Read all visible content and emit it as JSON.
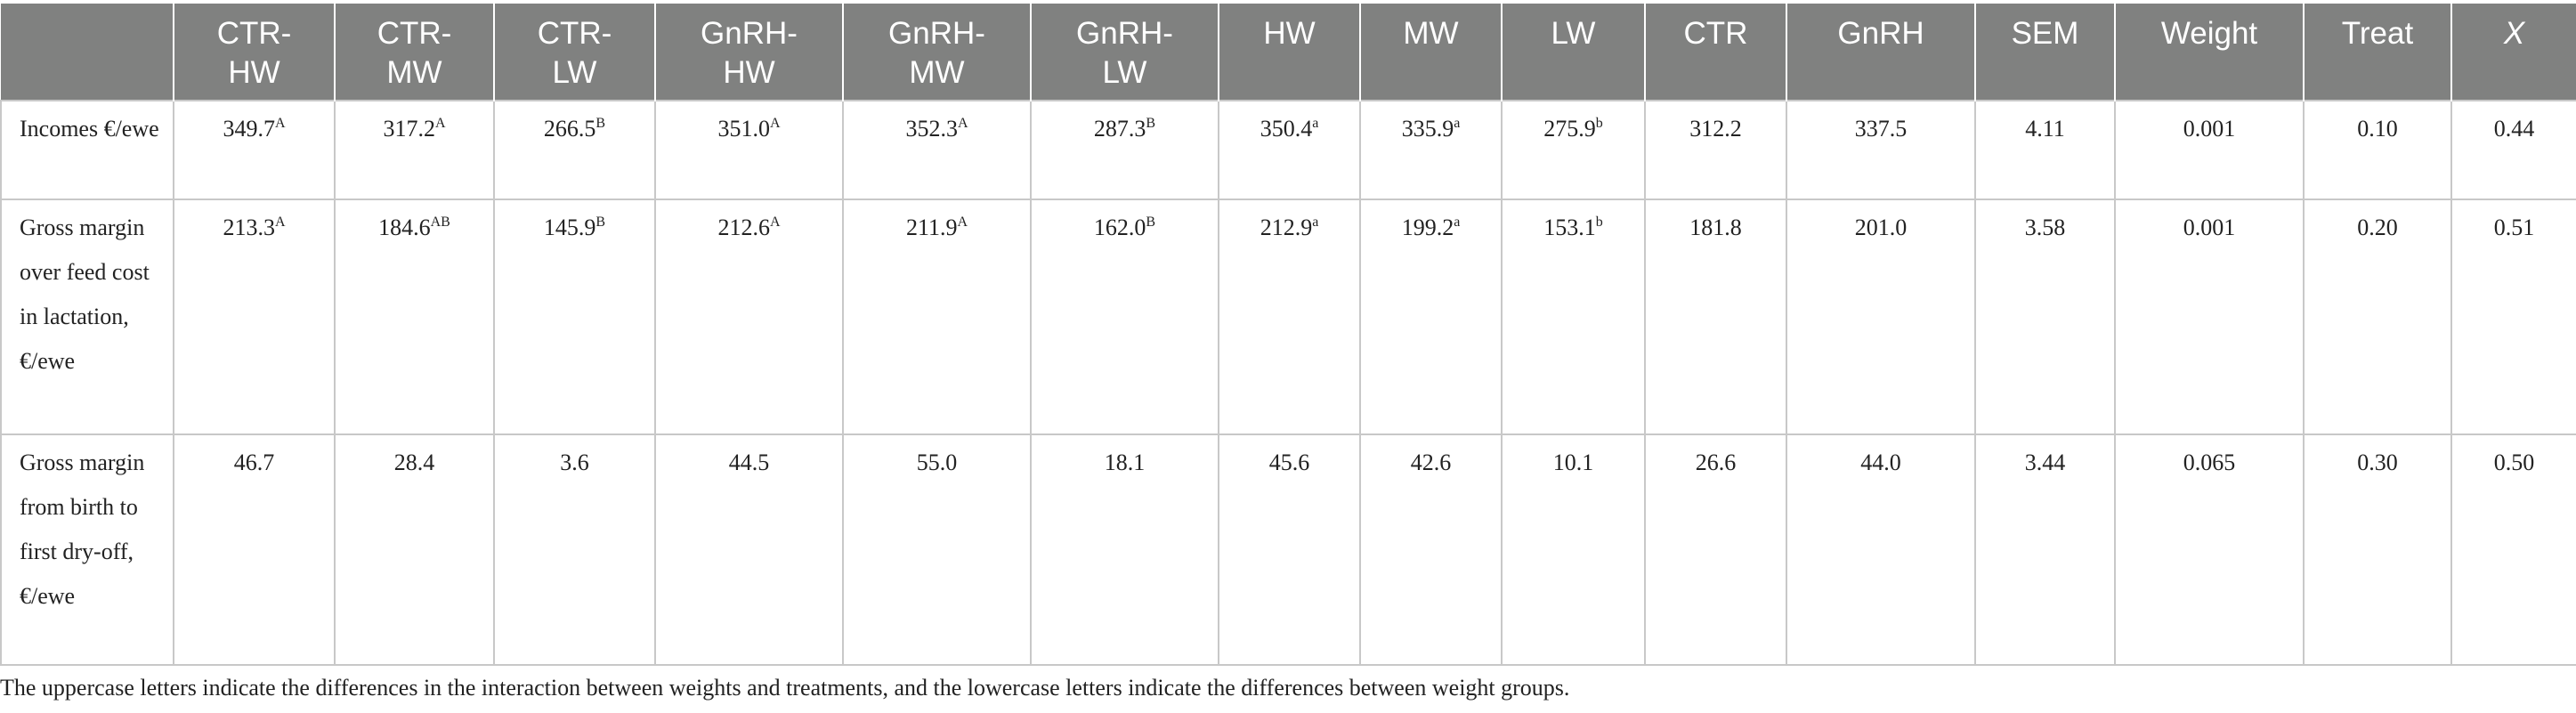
{
  "table": {
    "header": [
      "",
      "CTR-HW",
      "CTR-MW",
      "CTR-LW",
      "GnRH-HW",
      "GnRH-MW",
      "GnRH-LW",
      "HW",
      "MW",
      "LW",
      "CTR",
      "GnRH",
      "SEM",
      "Weight",
      "Treat",
      "X"
    ],
    "rows": [
      {
        "label": "Incomes €/ewe",
        "cells": [
          {
            "v": "349.7",
            "sup": "A"
          },
          {
            "v": "317.2",
            "sup": "A"
          },
          {
            "v": "266.5",
            "sup": "B"
          },
          {
            "v": "351.0",
            "sup": "A"
          },
          {
            "v": "352.3",
            "sup": "A"
          },
          {
            "v": "287.3",
            "sup": "B"
          },
          {
            "v": "350.4",
            "sup": "a"
          },
          {
            "v": "335.9",
            "sup": "a"
          },
          {
            "v": "275.9",
            "sup": "b"
          },
          {
            "v": "312.2"
          },
          {
            "v": "337.5"
          },
          {
            "v": "4.11"
          },
          {
            "v": "0.001"
          },
          {
            "v": "0.10"
          },
          {
            "v": "0.44"
          }
        ]
      },
      {
        "label": "Gross margin over feed cost in lactation, €/ewe",
        "cells": [
          {
            "v": "213.3",
            "sup": "A"
          },
          {
            "v": "184.6",
            "sup": "AB"
          },
          {
            "v": "145.9",
            "sup": "B"
          },
          {
            "v": "212.6",
            "sup": "A"
          },
          {
            "v": "211.9",
            "sup": "A"
          },
          {
            "v": "162.0",
            "sup": "B"
          },
          {
            "v": "212.9",
            "sup": "a"
          },
          {
            "v": "199.2",
            "sup": "a"
          },
          {
            "v": "153.1",
            "sup": "b"
          },
          {
            "v": "181.8"
          },
          {
            "v": "201.0"
          },
          {
            "v": "3.58"
          },
          {
            "v": "0.001"
          },
          {
            "v": "0.20"
          },
          {
            "v": "0.51"
          }
        ]
      },
      {
        "label": "Gross margin from birth to first dry-off, €/ewe",
        "cells": [
          {
            "v": "46.7"
          },
          {
            "v": "28.4"
          },
          {
            "v": "3.6"
          },
          {
            "v": "44.5"
          },
          {
            "v": "55.0"
          },
          {
            "v": "18.1"
          },
          {
            "v": "45.6"
          },
          {
            "v": "42.6"
          },
          {
            "v": "10.1"
          },
          {
            "v": "26.6"
          },
          {
            "v": "44.0"
          },
          {
            "v": "3.44"
          },
          {
            "v": "0.065"
          },
          {
            "v": "0.30"
          },
          {
            "v": "0.50"
          }
        ]
      }
    ],
    "footnote": "The uppercase letters indicate the differences in the interaction between weights and treatments, and the lowercase letters indicate the differences between weight groups."
  }
}
